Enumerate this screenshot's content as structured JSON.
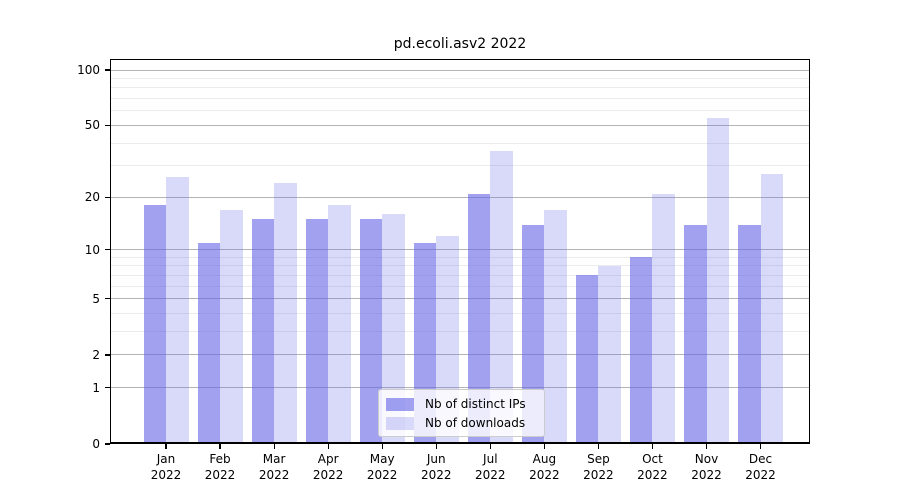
{
  "chart_data": {
    "type": "bar",
    "title": "pd.ecoli.asv2 2022",
    "months": [
      "Jan",
      "Feb",
      "Mar",
      "Apr",
      "May",
      "Jun",
      "Jul",
      "Aug",
      "Sep",
      "Oct",
      "Nov",
      "Dec"
    ],
    "year": "2022",
    "series": [
      {
        "name": "Nb of distinct IPs",
        "color": "rgba(102,102,230,0.61)",
        "values": [
          18,
          11,
          15,
          15,
          15,
          11,
          21,
          14,
          7,
          9,
          14,
          14
        ]
      },
      {
        "name": "Nb of downloads",
        "color": "rgba(102,102,230,0.25)",
        "values": [
          26,
          17,
          24,
          18,
          16,
          12,
          36,
          17,
          8,
          21,
          55,
          27
        ]
      }
    ],
    "yscale": "log1p",
    "ylim": [
      0,
      114.7
    ],
    "y_major_ticks": [
      0,
      1,
      2,
      5,
      10,
      20,
      50,
      100
    ],
    "y_minor_gridlines": [
      3,
      4,
      6,
      7,
      8,
      9,
      30,
      40,
      60,
      70,
      80,
      90
    ],
    "grid": true,
    "legend_position": "lower center"
  }
}
